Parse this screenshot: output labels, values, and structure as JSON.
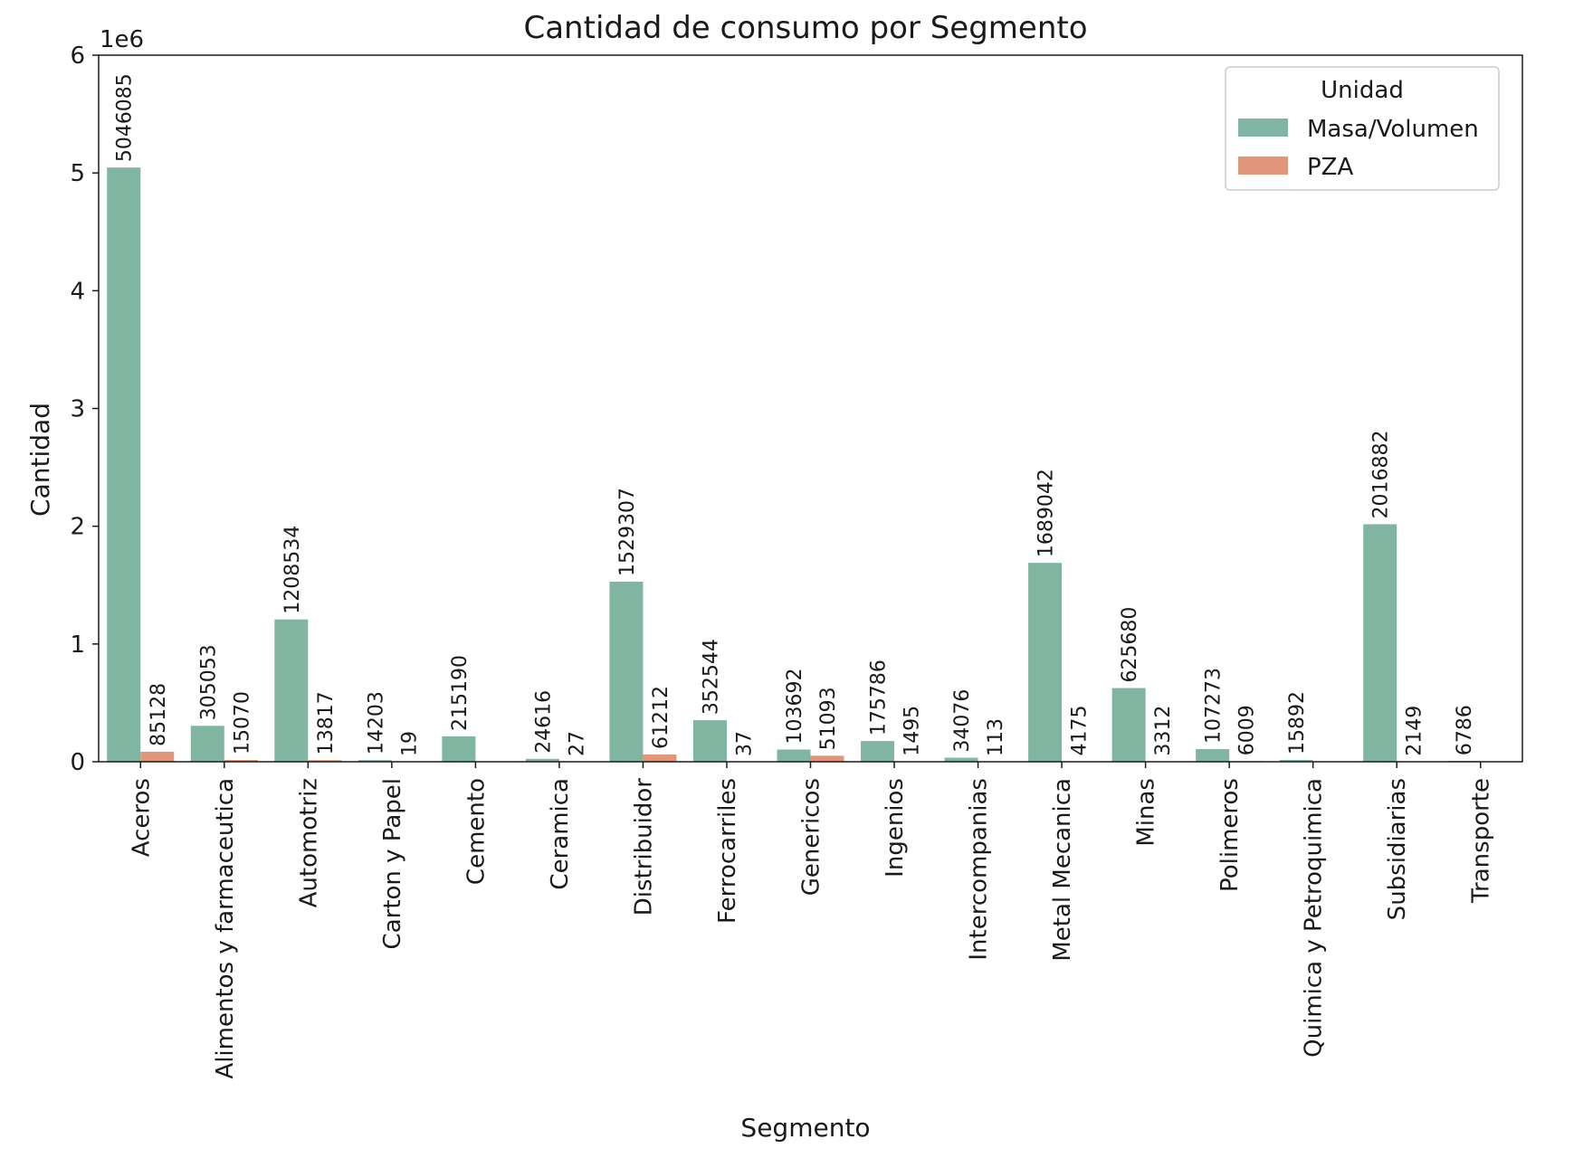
{
  "chart_data": {
    "type": "bar",
    "title": "Cantidad de consumo por Segmento",
    "xlabel": "Segmento",
    "ylabel": "Cantidad",
    "y_offset_label": "1e6",
    "y_scale": 1000000,
    "ylim": [
      0,
      6000000
    ],
    "yticks": [
      0,
      1,
      2,
      3,
      4,
      5,
      6
    ],
    "grid": false,
    "legend": {
      "title": "Unidad",
      "position": "top-right"
    },
    "categories": [
      "Aceros",
      "Alimentos y farmaceutica",
      "Automotriz",
      "Carton y Papel",
      "Cemento",
      "Ceramica",
      "Distribuidor",
      "Ferrocarriles",
      "Genericos",
      "Ingenios",
      "Intercompanias",
      "Metal Mecanica",
      "Minas",
      "Polimeros",
      "Quimica y Petroquimica",
      "Subsidiarias",
      "Transporte"
    ],
    "series": [
      {
        "name": "Masa/Volumen",
        "color": "#80b6a1",
        "values": [
          5046085,
          305053,
          1208534,
          14203,
          215190,
          24616,
          1529307,
          352544,
          103692,
          175786,
          34076,
          1689042,
          625680,
          107273,
          15892,
          2016882,
          6786
        ]
      },
      {
        "name": "PZA",
        "color": "#e1967a",
        "values": [
          85128,
          15070,
          13817,
          19,
          null,
          27,
          61212,
          37,
          51093,
          1495,
          113,
          4175,
          3312,
          6009,
          null,
          2149,
          null
        ]
      }
    ]
  }
}
